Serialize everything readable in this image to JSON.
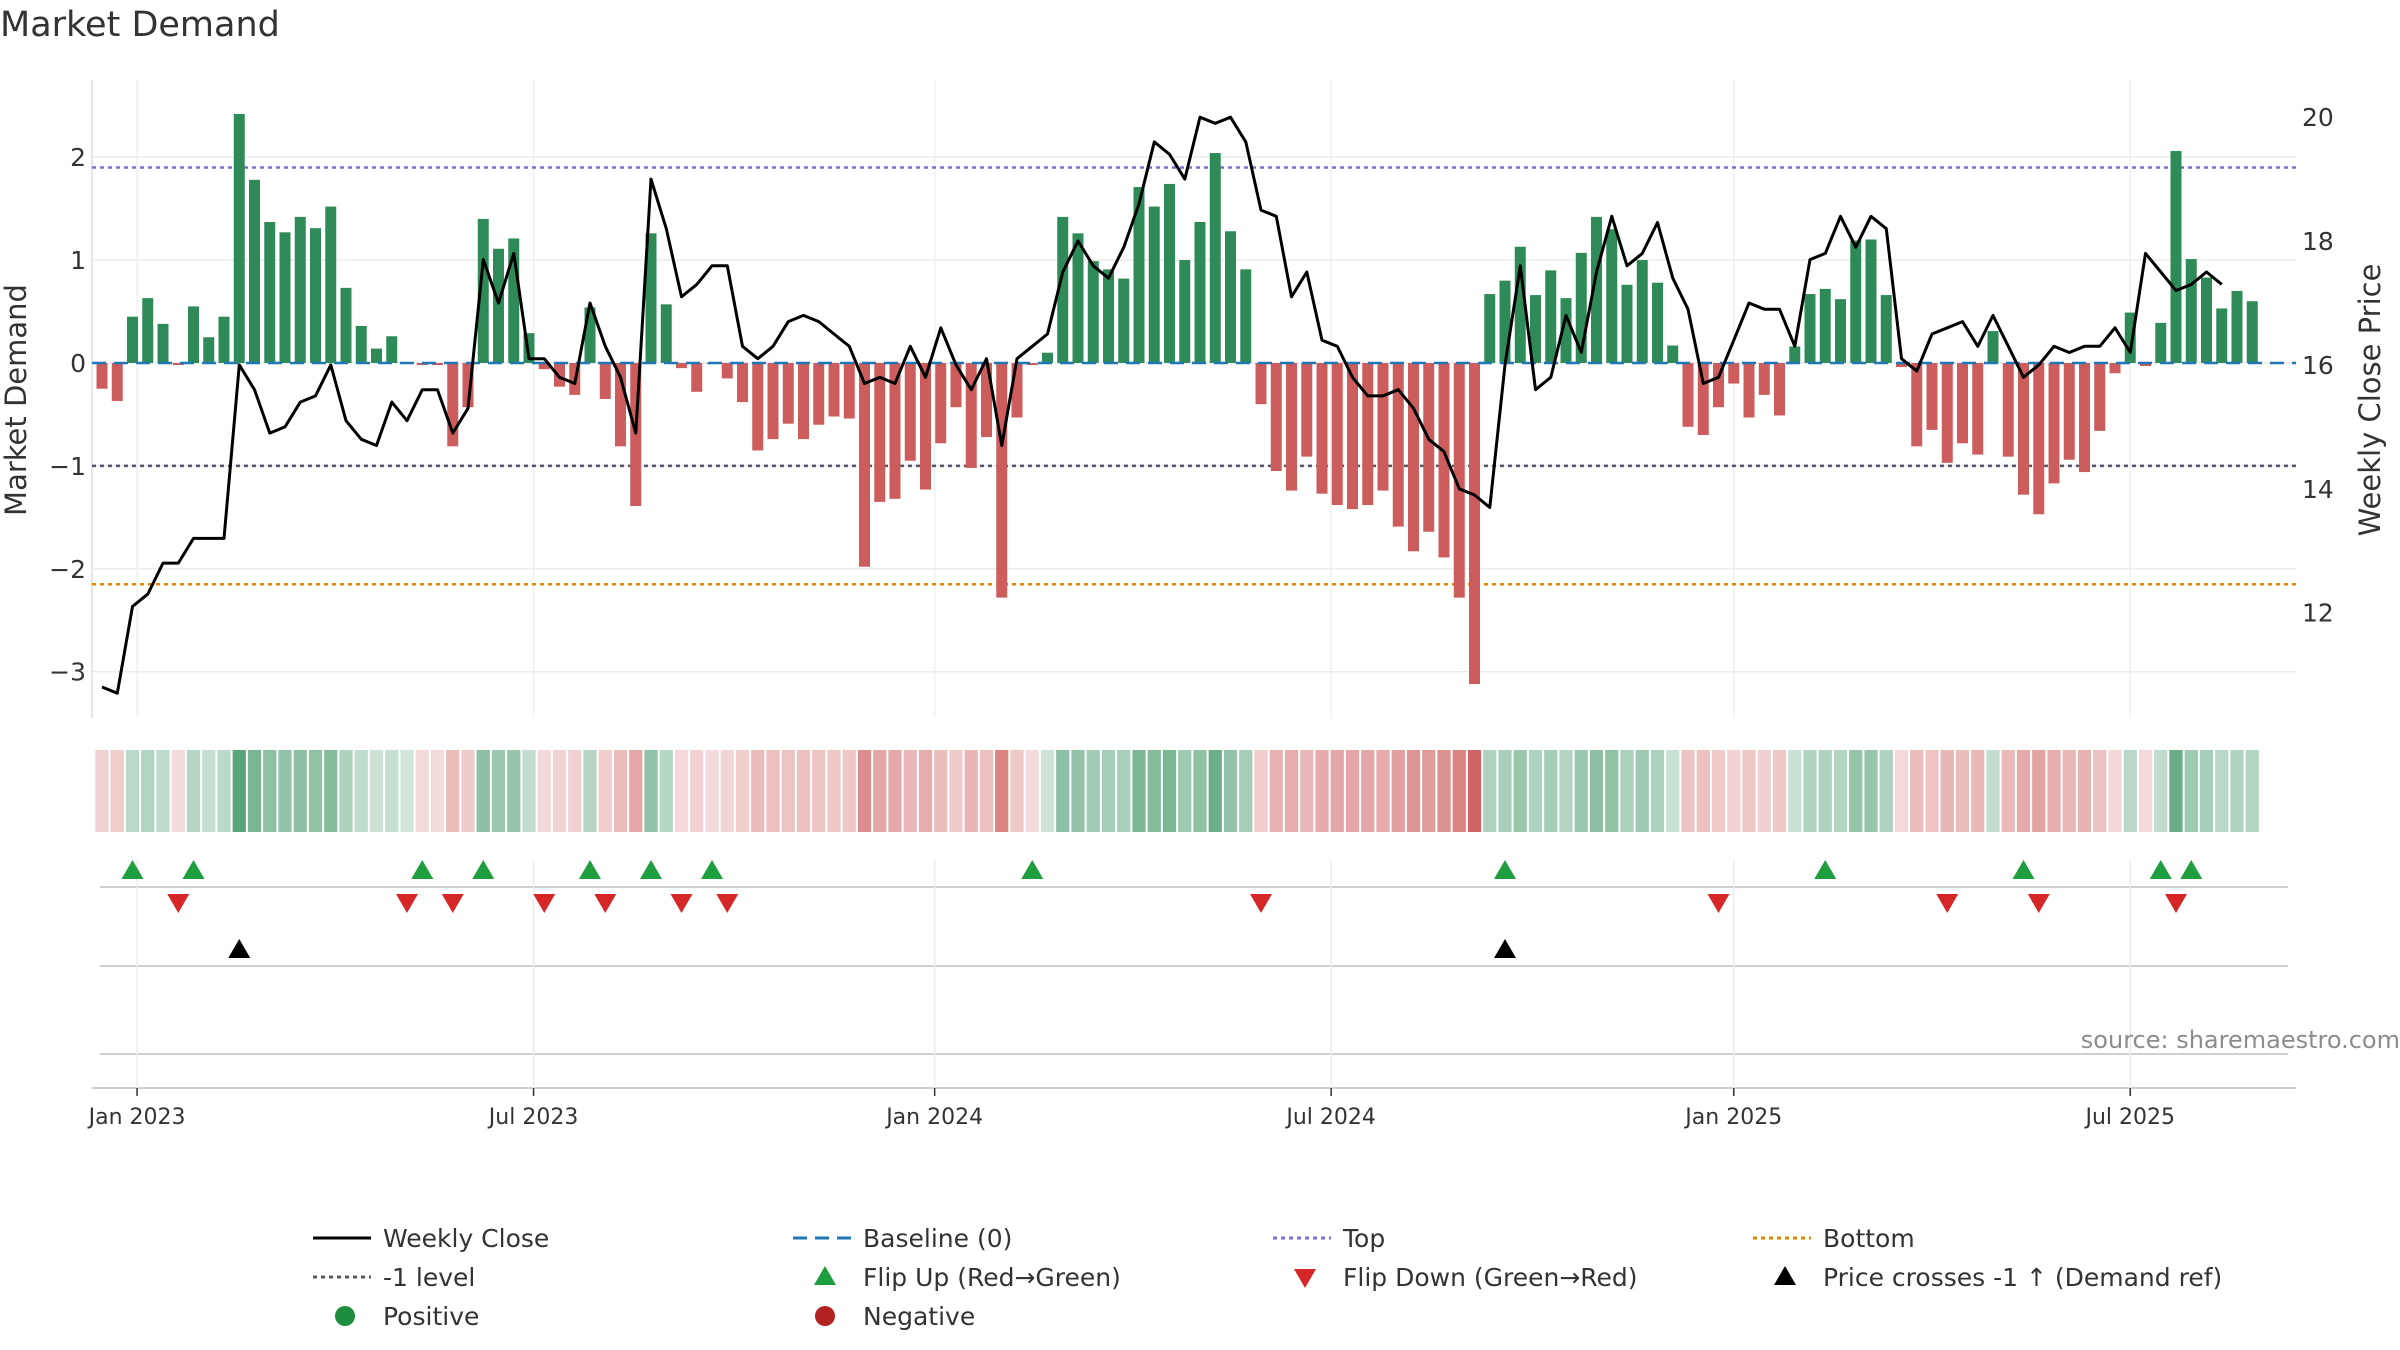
{
  "chart_data": {
    "type": "bar",
    "title": "Market Demand",
    "ylabel": "Market Demand",
    "y2label": "Weekly Close Price",
    "source": "source: sharemaestro.com",
    "ylim": [
      -3.45,
      2.75
    ],
    "y2lim": [
      10.3,
      20.6
    ],
    "yticks": [
      2,
      1,
      0,
      -1,
      -2,
      -3
    ],
    "ytick_labels": [
      "2",
      "1",
      "0",
      "−1",
      "−2",
      "−3"
    ],
    "y2ticks": [
      20,
      18,
      16,
      14,
      12
    ],
    "y2tick_labels": [
      "20",
      "18",
      "16",
      "14",
      "12"
    ],
    "x_tick_labels": [
      "Jan 2023",
      "Jul 2023",
      "Jan 2024",
      "Jul 2024",
      "Jan 2025",
      "Jul 2025"
    ],
    "x_tick_index": [
      2.3,
      28.3,
      54.6,
      80.6,
      107.0,
      133.0
    ],
    "levels": {
      "top": 1.9,
      "minus_one": -1.0,
      "bottom": -2.15,
      "baseline": 0
    },
    "colors": {
      "positive": "#2e8b57",
      "negative": "#cd5c5c",
      "flip_up": "#1e9e3e",
      "flip_down": "#d62728",
      "cross": "#000000",
      "top": "#7b6fd0",
      "minus_one": "#555566",
      "bottom": "#e08a00",
      "baseline": "#1f77b4",
      "price": "#000000"
    },
    "series": [
      {
        "name": "Market Demand",
        "values": [
          -0.25,
          -0.37,
          0.45,
          0.63,
          0.38,
          -0.02,
          0.55,
          0.25,
          0.45,
          2.42,
          1.78,
          1.37,
          1.27,
          1.42,
          1.31,
          1.52,
          0.73,
          0.36,
          0.14,
          0.26,
          0.01,
          -0.02,
          -0.02,
          -0.81,
          -0.43,
          1.4,
          1.11,
          1.21,
          0.29,
          -0.06,
          -0.23,
          -0.31,
          0.54,
          -0.35,
          -0.81,
          -1.39,
          1.26,
          0.57,
          -0.05,
          -0.28,
          -0.01,
          -0.15,
          -0.38,
          -0.85,
          -0.74,
          -0.59,
          -0.74,
          -0.6,
          -0.52,
          -0.54,
          -1.98,
          -1.35,
          -1.32,
          -0.95,
          -1.23,
          -0.78,
          -0.43,
          -1.02,
          -0.72,
          -2.28,
          -0.53,
          -0.02,
          0.1,
          1.42,
          1.26,
          0.99,
          0.91,
          0.82,
          1.71,
          1.52,
          1.74,
          1.0,
          1.37,
          2.04,
          1.28,
          0.91,
          -0.4,
          -1.05,
          -1.24,
          -0.91,
          -1.27,
          -1.38,
          -1.42,
          -1.38,
          -1.24,
          -1.59,
          -1.83,
          -1.64,
          -1.89,
          -2.28,
          -3.12,
          0.67,
          0.8,
          1.13,
          0.66,
          0.9,
          0.63,
          1.07,
          1.42,
          1.3,
          0.76,
          1.0,
          0.78,
          0.17,
          -0.62,
          -0.7,
          -0.43,
          -0.2,
          -0.53,
          -0.31,
          -0.51,
          0.16,
          0.67,
          0.72,
          0.62,
          1.19,
          1.2,
          0.66,
          -0.04,
          -0.81,
          -0.65,
          -0.97,
          -0.78,
          -0.89,
          0.31,
          -0.91,
          -1.28,
          -1.47,
          -1.17,
          -0.94,
          -1.06,
          -0.66,
          -0.1,
          0.49,
          -0.03,
          0.39,
          2.06,
          1.01,
          0.83,
          0.53,
          0.7,
          0.6
        ]
      },
      {
        "name": "Weekly Close",
        "values": [
          10.8,
          10.7,
          12.1,
          12.3,
          12.8,
          12.8,
          13.2,
          13.2,
          13.2,
          16.0,
          15.6,
          14.9,
          15.0,
          15.4,
          15.5,
          16.0,
          15.1,
          14.8,
          14.7,
          15.4,
          15.1,
          15.6,
          15.6,
          14.9,
          15.3,
          17.7,
          17.0,
          17.8,
          16.1,
          16.1,
          15.8,
          15.7,
          17.0,
          16.3,
          15.8,
          14.9,
          19.0,
          18.2,
          17.1,
          17.3,
          17.6,
          17.6,
          16.3,
          16.1,
          16.3,
          16.7,
          16.8,
          16.7,
          16.5,
          16.3,
          15.7,
          15.8,
          15.7,
          16.3,
          15.8,
          16.6,
          16.0,
          15.6,
          16.1,
          14.7,
          16.1,
          16.3,
          16.5,
          17.5,
          18.0,
          17.6,
          17.4,
          17.9,
          18.6,
          19.6,
          19.4,
          19.0,
          20.0,
          19.9,
          20.0,
          19.6,
          18.5,
          18.4,
          17.1,
          17.5,
          16.4,
          16.3,
          15.8,
          15.5,
          15.5,
          15.6,
          15.3,
          14.8,
          14.6,
          14.0,
          13.9,
          13.7,
          16.0,
          17.6,
          15.6,
          15.8,
          16.8,
          16.2,
          17.5,
          18.4,
          17.6,
          17.8,
          18.3,
          17.4,
          16.9,
          15.7,
          15.8,
          16.4,
          17.0,
          16.9,
          16.9,
          16.3,
          17.7,
          17.8,
          18.4,
          17.9,
          18.4,
          18.2,
          16.1,
          15.9,
          16.5,
          16.6,
          16.7,
          16.3,
          16.8,
          16.3,
          15.8,
          16.0,
          16.3,
          16.2,
          16.3,
          16.3,
          16.6,
          16.2,
          17.8,
          17.5,
          17.2,
          17.3,
          17.5,
          17.3
        ]
      }
    ],
    "flip_up_index": [
      2,
      6,
      21,
      25,
      32,
      36,
      40,
      61,
      92,
      113,
      126,
      135,
      137
    ],
    "flip_down_index": [
      5,
      20,
      23,
      29,
      33,
      38,
      41,
      76,
      106,
      121,
      127,
      136
    ],
    "cross_index": [
      9,
      92
    ],
    "legend": [
      {
        "label": "Weekly Close",
        "kind": "solid"
      },
      {
        "label": "Baseline (0)",
        "kind": "dashed"
      },
      {
        "label": "Top",
        "kind": "dotted"
      },
      {
        "label": "Bottom",
        "kind": "dotted-orange"
      },
      {
        "label": "-1 level",
        "kind": "dotted-grey"
      },
      {
        "label": "Flip Up (Red→Green)",
        "kind": "triangle-up"
      },
      {
        "label": "Flip Down (Green→Red)",
        "kind": "triangle-down"
      },
      {
        "label": "Price crosses -1 ↑ (Demand ref)",
        "kind": "triangle-black"
      },
      {
        "label": "Positive",
        "kind": "dot-green"
      },
      {
        "label": "Negative",
        "kind": "dot-red"
      }
    ]
  }
}
